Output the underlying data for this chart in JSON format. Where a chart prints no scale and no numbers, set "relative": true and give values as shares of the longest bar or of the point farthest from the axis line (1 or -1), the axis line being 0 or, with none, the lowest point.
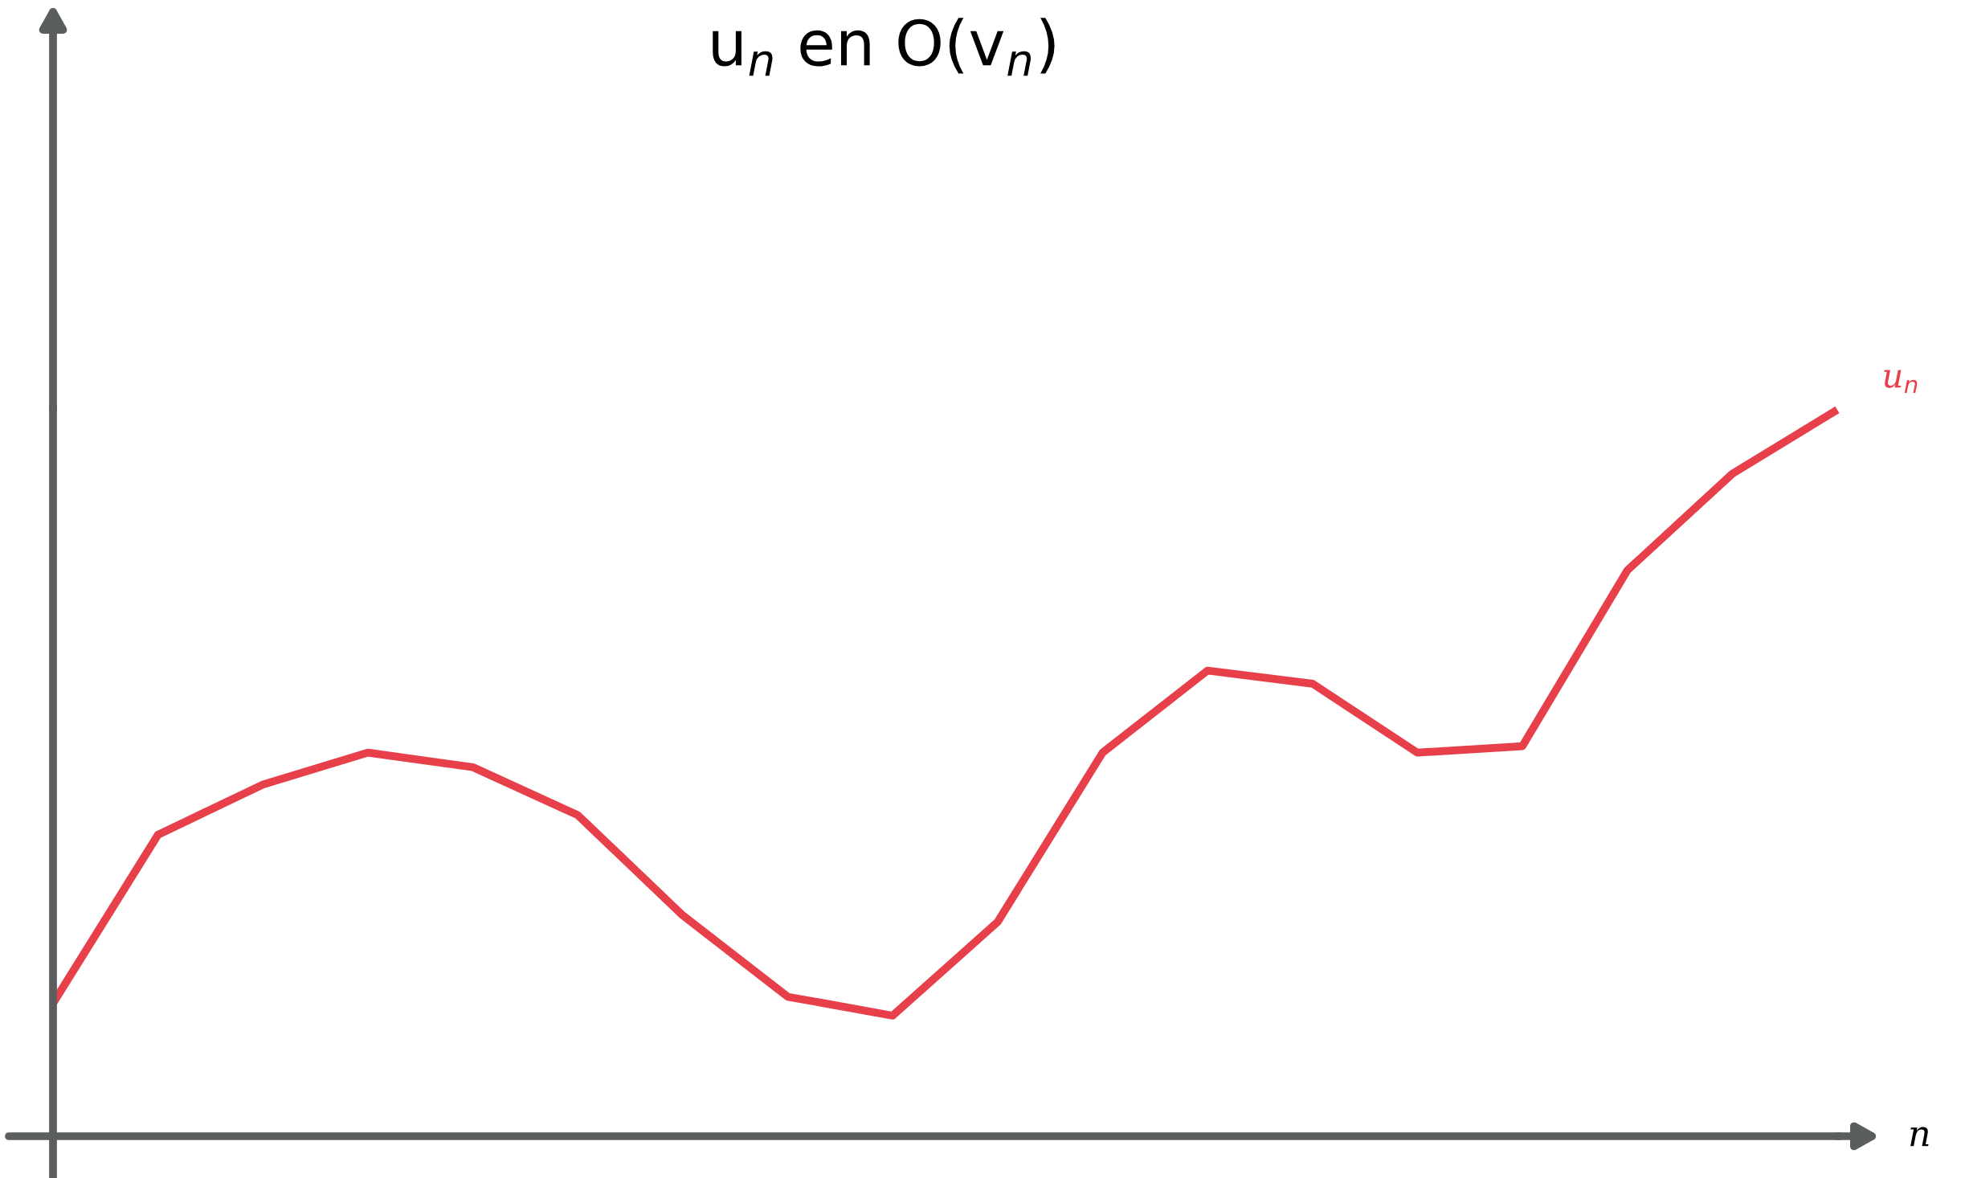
{
  "chart_data": {
    "type": "line",
    "title": "u$_{n}$ en O(v$_{n}$)",
    "xlabel": "n",
    "relative": true,
    "categories": [
      null,
      null,
      null,
      null,
      null,
      null,
      null,
      null,
      null,
      null,
      null,
      null,
      null,
      null,
      null,
      null,
      null,
      null
    ],
    "series": [
      {
        "name": "u$_{n}$",
        "color": "#e8404a",
        "values": [
          0.183,
          0.415,
          0.484,
          0.528,
          0.508,
          0.442,
          0.304,
          0.192,
          0.166,
          0.295,
          0.528,
          0.641,
          0.623,
          0.528,
          0.537,
          0.779,
          0.912,
          1
        ]
      }
    ],
    "grid": false,
    "legend": false,
    "marker": "none",
    "line_style": "solid"
  }
}
